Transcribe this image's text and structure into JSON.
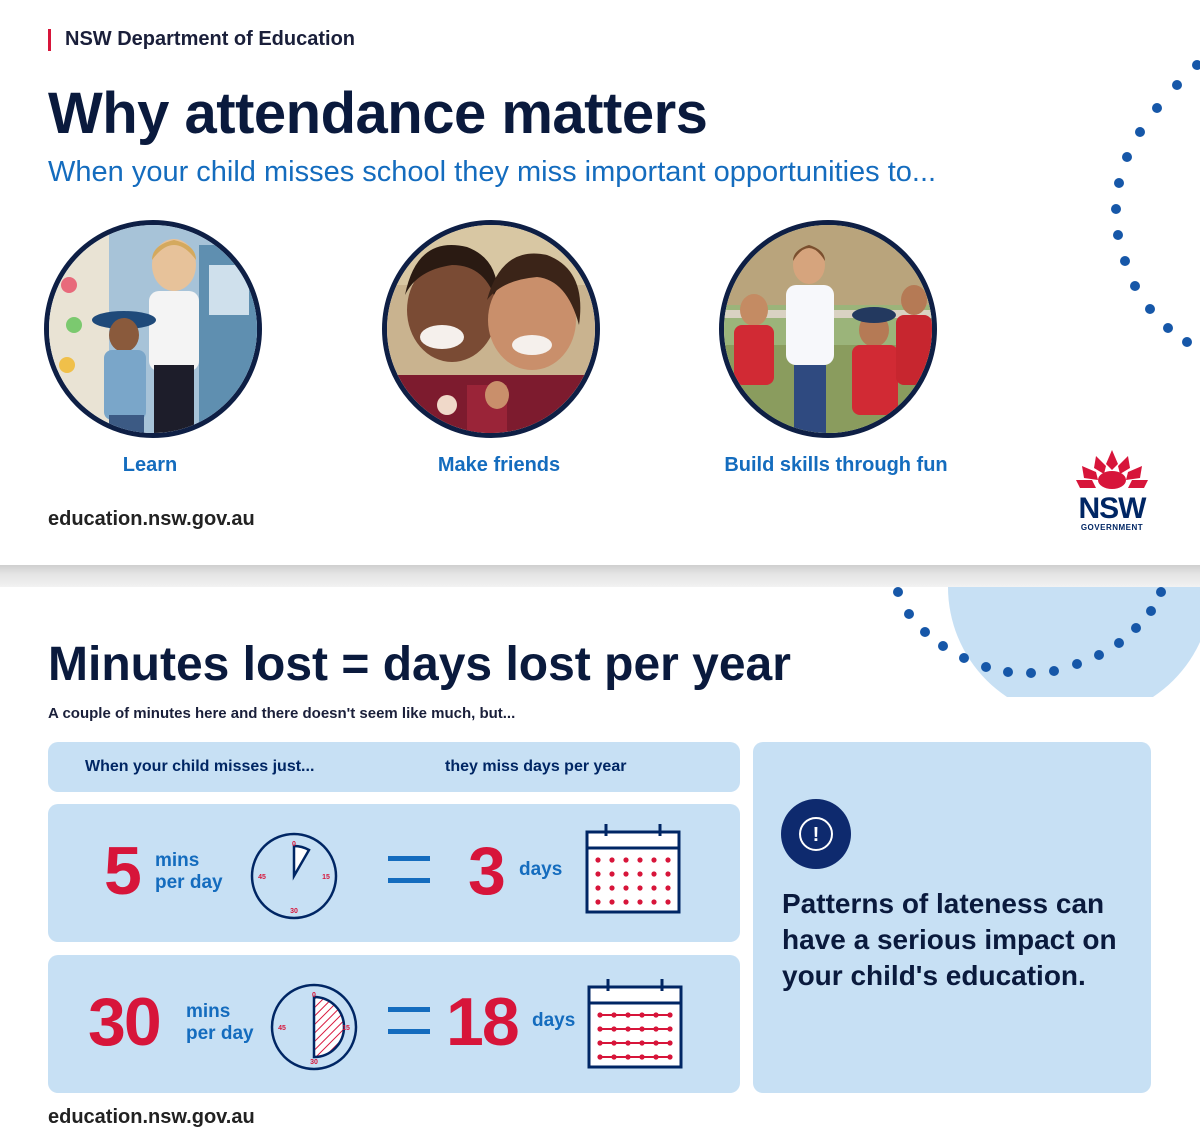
{
  "page1": {
    "department": "NSW Department of Education",
    "title": "Why attendance matters",
    "subtitle": "When your child misses school they miss important opportunities to...",
    "opportunities": [
      "Learn",
      "Make friends",
      "Build skills through fun"
    ],
    "website": "education.nsw.gov.au",
    "logo": {
      "word": "NSW",
      "sub": "GOVERNMENT",
      "icon": "waratah-flower-icon"
    }
  },
  "page2": {
    "title": "Minutes lost = days lost per year",
    "intro": "A couple of minutes here and there doesn't seem like much, but...",
    "table_header": {
      "left": "When your child misses just...",
      "right": "they miss days per year"
    },
    "rows": [
      {
        "minutes": "5",
        "minutes_unit_1": "mins",
        "minutes_unit_2": "per day",
        "days": "3",
        "days_unit": "days",
        "fraction_of_hour": 0.0833
      },
      {
        "minutes": "30",
        "minutes_unit_1": "mins",
        "minutes_unit_2": "per day",
        "days": "18",
        "days_unit": "days",
        "fraction_of_hour": 0.5
      }
    ],
    "clock_labels": {
      "top": "0",
      "right": "15",
      "bottom": "30",
      "left": "45"
    },
    "callout": "Patterns of lateness can have a serious impact on your child's education.",
    "alert_symbol": "!",
    "website": "education.nsw.gov.au"
  },
  "colors": {
    "navy": "#002664",
    "red": "#d7153a",
    "blue": "#146cbe",
    "light_blue": "#c7e0f4"
  }
}
